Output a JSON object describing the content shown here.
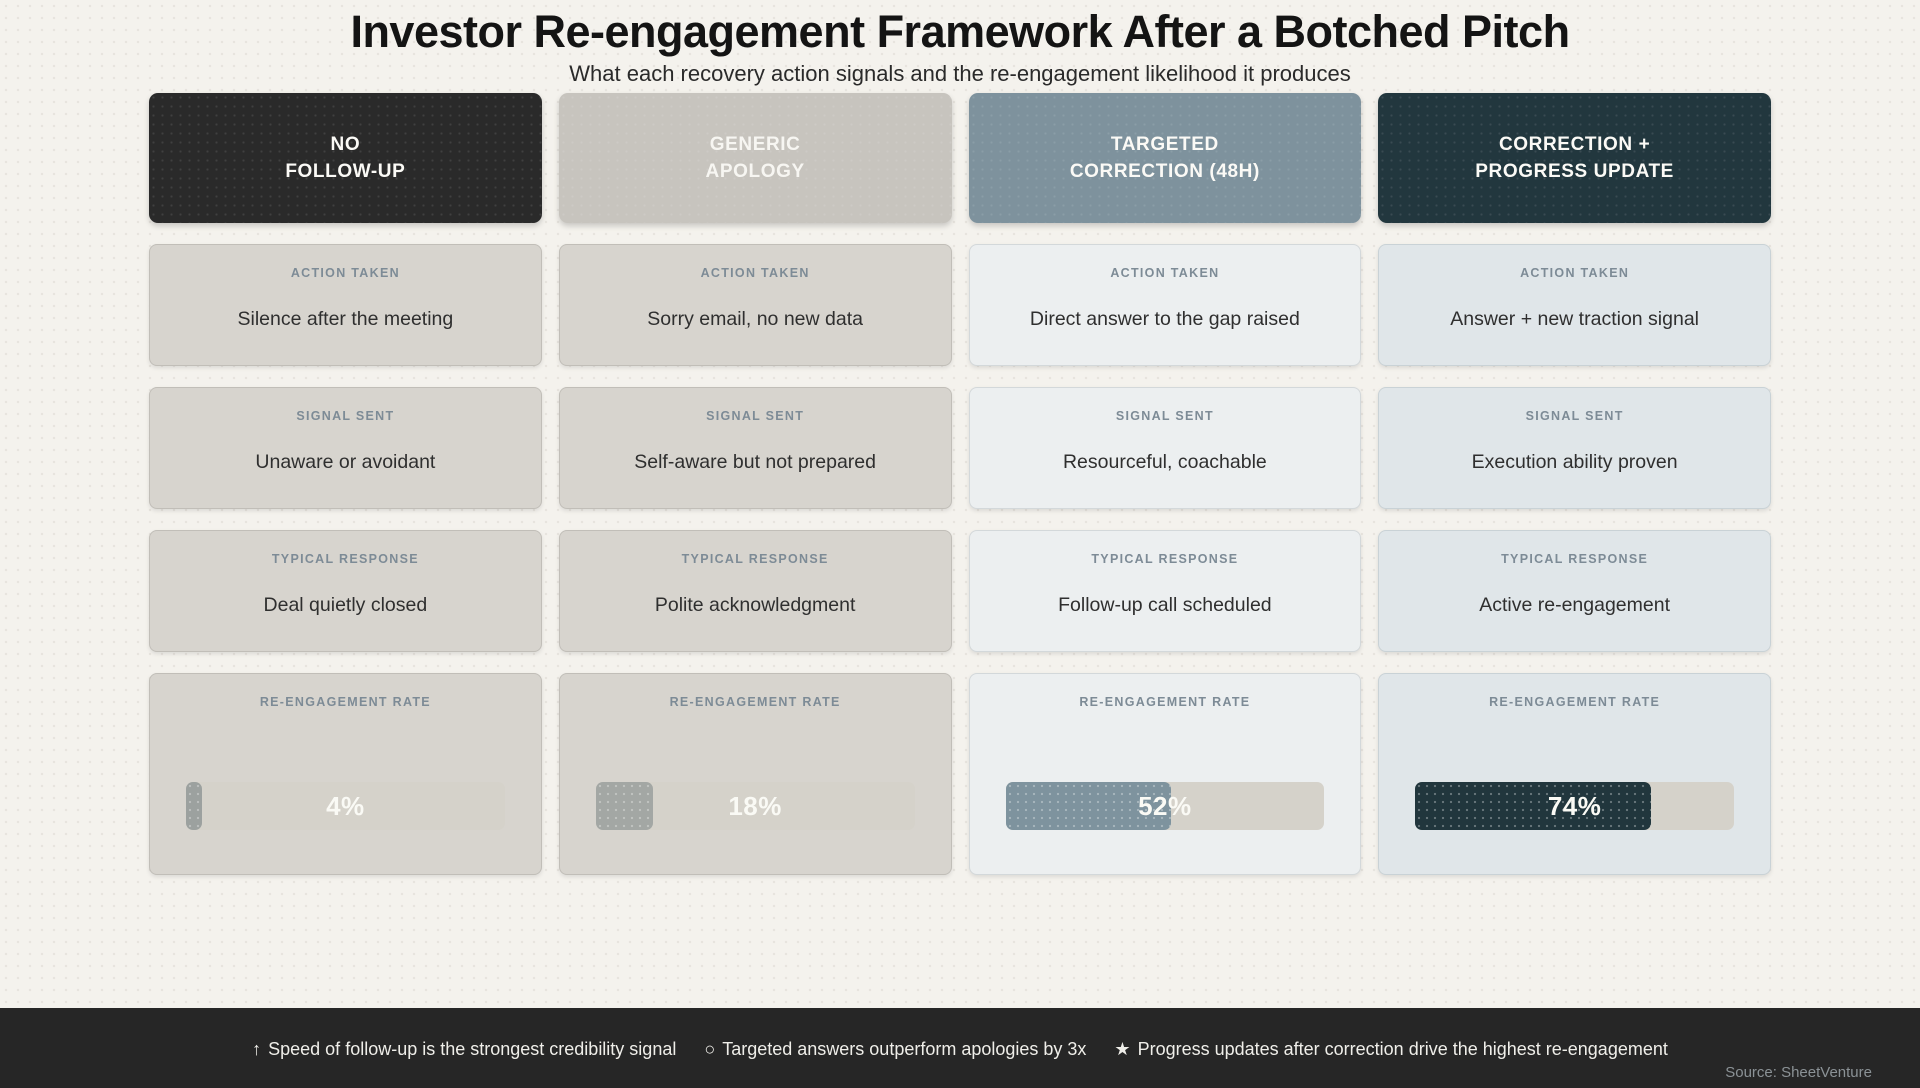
{
  "page": {
    "title": "Investor Re-engagement Framework After a Botched Pitch",
    "subtitle": "What each recovery action signals and the re-engagement likelihood it produces",
    "background_color": "#f4f2ed"
  },
  "row_labels": {
    "action": "ACTION TAKEN",
    "signal": "SIGNAL SENT",
    "response": "TYPICAL RESPONSE",
    "rate": "RE-ENGAGEMENT RATE"
  },
  "columns": [
    {
      "header": {
        "line1": "NO",
        "line2": "FOLLOW-UP",
        "bg": "#2a2a2a"
      },
      "action": "Silence after the meeting",
      "signal": "Unaware or avoidant",
      "response": "Deal quietly closed",
      "rate": {
        "value": 4,
        "label": "4%",
        "fill_color": "#9ca19f"
      }
    },
    {
      "header": {
        "line1": "GENERIC",
        "line2": "APOLOGY",
        "bg": "#c7c4be"
      },
      "action": "Sorry email, no new data",
      "signal": "Self-aware but not prepared",
      "response": "Polite acknowledgment",
      "rate": {
        "value": 18,
        "label": "18%",
        "fill_color": "#a3a7a4"
      }
    },
    {
      "header": {
        "line1": "TARGETED",
        "line2": "CORRECTION (48H)",
        "bg": "#7e929d"
      },
      "action": "Direct answer to the gap raised",
      "signal": "Resourceful, coachable",
      "response": "Follow-up call scheduled",
      "rate": {
        "value": 52,
        "label": "52%",
        "fill_color": "#7e939e"
      }
    },
    {
      "header": {
        "line1": "CORRECTION +",
        "line2": "PROGRESS UPDATE",
        "bg": "#22373e"
      },
      "action": "Answer + new traction signal",
      "signal": "Execution ability proven",
      "response": "Active re-engagement",
      "rate": {
        "value": 74,
        "label": "74%",
        "fill_color": "#21363d"
      }
    }
  ],
  "footer": {
    "bg": "#262626",
    "notes": [
      {
        "icon": "↑",
        "text": "Speed of follow-up is the strongest credibility signal"
      },
      {
        "icon": "○",
        "text": "Targeted answers outperform apologies by 3x"
      },
      {
        "icon": "★",
        "text": "Progress updates after correction drive the highest re-engagement"
      }
    ],
    "source": "Source: SheetVenture"
  },
  "chart_data": {
    "type": "table",
    "title": "Investor Re-engagement Framework After a Botched Pitch",
    "subtitle": "What each recovery action signals and the re-engagement likelihood it produces",
    "columns": [
      "NO FOLLOW-UP",
      "GENERIC APOLOGY",
      "TARGETED CORRECTION (48H)",
      "CORRECTION + PROGRESS UPDATE"
    ],
    "rows": [
      {
        "label": "ACTION TAKEN",
        "values": [
          "Silence after the meeting",
          "Sorry email, no new data",
          "Direct answer to the gap raised",
          "Answer + new traction signal"
        ]
      },
      {
        "label": "SIGNAL SENT",
        "values": [
          "Unaware or avoidant",
          "Self-aware but not prepared",
          "Resourceful, coachable",
          "Execution ability proven"
        ]
      },
      {
        "label": "TYPICAL RESPONSE",
        "values": [
          "Deal quietly closed",
          "Polite acknowledgment",
          "Follow-up call scheduled",
          "Active re-engagement"
        ]
      },
      {
        "label": "RE-ENGAGEMENT RATE",
        "display": "bar",
        "values": [
          "4%",
          "18%",
          "52%",
          "74%"
        ],
        "numeric": [
          4,
          18,
          52,
          74
        ],
        "range": [
          0,
          100
        ]
      }
    ],
    "notes": [
      "Speed of follow-up is the strongest credibility signal",
      "Targeted answers outperform apologies by 3x",
      "Progress updates after correction drive the highest re-engagement"
    ],
    "source": "SheetVenture"
  }
}
